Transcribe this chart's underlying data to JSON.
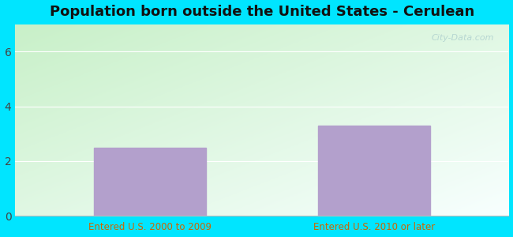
{
  "title": "Population born outside the United States - Cerulean",
  "categories": [
    "Entered U.S. 2000 to 2009",
    "Entered U.S. 2010 or later"
  ],
  "values": [
    2.5,
    3.3
  ],
  "bar_color": "#b3a0cc",
  "xlabel_color": "#cc6600",
  "ylabel_ticks": [
    0,
    2,
    4,
    6
  ],
  "ylim": [
    0,
    7
  ],
  "background_outer": "#00e5ff",
  "bg_bottom_left": "#c8f0c8",
  "bg_top_right": "#f8ffff",
  "grid_color": "#ffffff",
  "title_fontsize": 13,
  "tick_label_color": "#444444",
  "watermark": "City-Data.com"
}
